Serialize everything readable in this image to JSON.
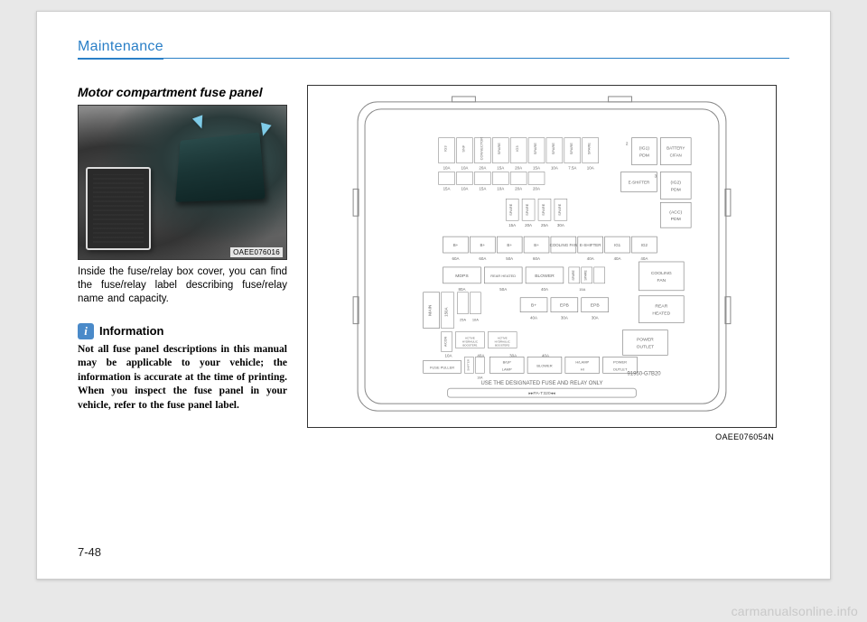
{
  "header": {
    "section": "Maintenance"
  },
  "page_number": "7-48",
  "watermark": "carmanualsonline.info",
  "left": {
    "heading": "Motor compartment fuse panel",
    "photo_code": "OAEE076016",
    "body": "Inside the fuse/relay box cover, you can find the fuse/relay label describing fuse/relay name and capacity.",
    "info_heading": "Information",
    "info_body": "Not all fuse panel descriptions in this manual may be applicable to your vehicle; the information is accurate at the time of printing. When you inspect the fuse panel in your vehicle, refer to the fuse panel label."
  },
  "diagram": {
    "code": "OAEE076054N",
    "part_number": "91950-G7B20",
    "footer_text": "USE THE DESIGNATED FUSE AND RELAY ONLY",
    "colors": {
      "stroke": "#777777",
      "light_stroke": "#aaaaaa",
      "text": "#666666",
      "bg": "#ffffff"
    },
    "relays_right": [
      {
        "label1": "(IG1)",
        "label2": "PDM",
        "num": "2"
      },
      {
        "label1": "BATTERY",
        "label2": "C/FAN",
        "num": ""
      },
      {
        "label1": "(IG2)",
        "label2": "PDM",
        "num": "3"
      },
      {
        "label1": "(ACC)",
        "label2": "PDM",
        "num": ""
      }
    ],
    "eshifter": "E-SHIFTER",
    "row_top_small": [
      {
        "top": "IG3",
        "bot": "10A"
      },
      {
        "top": "SNF",
        "bot": "10A"
      },
      {
        "top": "CONNECTOR",
        "bot": "20A"
      },
      {
        "top": "SPARE",
        "bot": "15A"
      },
      {
        "top": "IG3",
        "bot": "20A"
      },
      {
        "top": "SPARE",
        "bot": "15A"
      },
      {
        "top": "SPARE",
        "bot": "10A"
      },
      {
        "top": "SPARE",
        "bot": "7.5A"
      },
      {
        "top": "SPARE",
        "bot": "10A"
      }
    ],
    "row_top_small2": [
      {
        "bot": "15A"
      },
      {
        "bot": "10A"
      },
      {
        "bot": "15A"
      },
      {
        "bot": "10A"
      },
      {
        "bot": "20A"
      },
      {
        "bot": "20A"
      }
    ],
    "row_spare_mid": [
      {
        "top": "SPARE",
        "bot": "15A"
      },
      {
        "top": "SPARE",
        "bot": "20A"
      },
      {
        "top": "SPARE",
        "bot": "25A"
      },
      {
        "top": "SPARE",
        "bot": "30A"
      }
    ],
    "row_bplus_header": [
      "B+",
      "B+",
      "B+",
      "B+",
      "COOLING FAN",
      "E-SHIFTER",
      "IG1",
      "IG2"
    ],
    "row_bplus_amps": [
      "60A",
      "60A",
      "50A",
      "60A",
      "",
      "40A",
      "40A",
      "40A"
    ],
    "row_mdps": {
      "left": "MDPS",
      "mid": "REAR HEATED",
      "right": "BLOWER",
      "relay": "COOLING FAN"
    },
    "row_mdps_amps": [
      "80A",
      "50A",
      "40A"
    ],
    "row_main_label": "MAIN",
    "row_main_amp": "150A",
    "row_epb_header": [
      "B+",
      "EPB",
      "EPB"
    ],
    "row_epb_amps": [
      "40A",
      "30A",
      "30A"
    ],
    "row_epb_relay": "REAR HEATED",
    "row_hydraulic": [
      "25A",
      "10A"
    ],
    "row_hydraulic_labels": [
      "ACTIVE HYDRAULIC BOOSTER1",
      "ACTIVE HYDRAULIC BOOSTER2"
    ],
    "row_bottom_amps": [
      "10A",
      "40A",
      "30A",
      "40A"
    ],
    "row_bottom_relay": "POWER OUTLET",
    "row_fuse_puller": "FUSE PULLER",
    "row_bottom_labels": [
      "B/UP LAMP",
      "BLOWER",
      "H/LAMP HI",
      "POWER OUTLET"
    ],
    "row_bottom_small": [
      "10A"
    ]
  }
}
